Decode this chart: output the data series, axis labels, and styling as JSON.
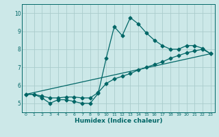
{
  "xlabel": "Humidex (Indice chaleur)",
  "bg_color": "#cce8e8",
  "grid_color": "#aacccc",
  "line_color": "#006666",
  "xlim": [
    -0.5,
    23.5
  ],
  "ylim": [
    4.5,
    10.5
  ],
  "xticks": [
    0,
    1,
    2,
    3,
    4,
    5,
    6,
    7,
    8,
    9,
    10,
    11,
    12,
    13,
    14,
    15,
    16,
    17,
    18,
    19,
    20,
    21,
    22,
    23
  ],
  "yticks": [
    5,
    6,
    7,
    8,
    9,
    10
  ],
  "line1_x": [
    0,
    1,
    2,
    3,
    4,
    5,
    6,
    7,
    8,
    9,
    10,
    11,
    12,
    13,
    14,
    15,
    16,
    17,
    18,
    19,
    20,
    21,
    22,
    23
  ],
  "line1_y": [
    5.5,
    5.5,
    5.3,
    5.0,
    5.2,
    5.2,
    5.1,
    5.0,
    5.0,
    5.55,
    7.5,
    9.25,
    8.75,
    9.75,
    9.4,
    8.9,
    8.5,
    8.2,
    8.0,
    8.0,
    8.2,
    8.2,
    8.05,
    7.75
  ],
  "line2_x": [
    0,
    1,
    2,
    3,
    4,
    5,
    6,
    7,
    8,
    9,
    10,
    11,
    12,
    13,
    14,
    15,
    16,
    17,
    18,
    19,
    20,
    21,
    22,
    23
  ],
  "line2_y": [
    5.5,
    5.5,
    5.4,
    5.3,
    5.3,
    5.35,
    5.35,
    5.3,
    5.3,
    5.6,
    6.1,
    6.35,
    6.5,
    6.65,
    6.85,
    7.0,
    7.15,
    7.3,
    7.5,
    7.65,
    7.8,
    7.9,
    8.0,
    7.75
  ],
  "line3_x": [
    0,
    23
  ],
  "line3_y": [
    5.5,
    7.75
  ]
}
